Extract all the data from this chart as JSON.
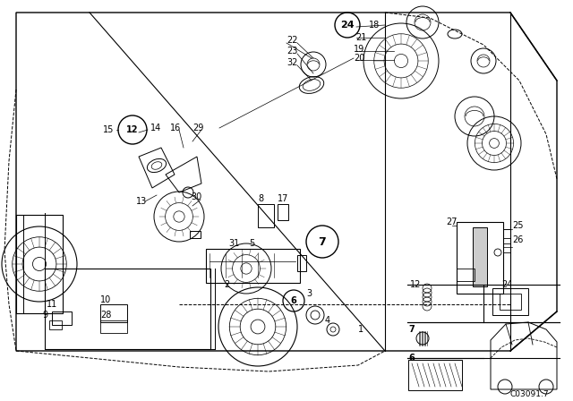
{
  "bg_color": "#ffffff",
  "fig_width": 6.4,
  "fig_height": 4.48,
  "dpi": 100,
  "catalog_number": "C03091:7",
  "lc": "black",
  "lw": 0.7
}
